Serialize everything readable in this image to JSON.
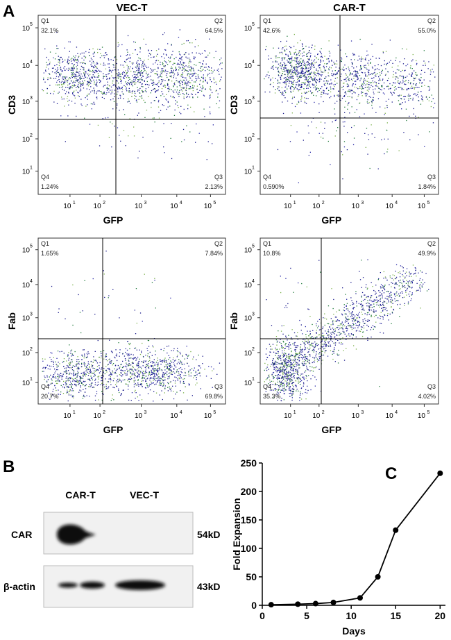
{
  "panel_a": {
    "label": "A",
    "tick_base": "10",
    "tick_exps": [
      "1",
      "2",
      "3",
      "4",
      "5"
    ],
    "plots": [
      {
        "title": "VEC-T",
        "y_label": "CD3",
        "x_label": "GFP",
        "quadrants": [
          {
            "name": "Q1",
            "value": "32.1%"
          },
          {
            "name": "Q2",
            "value": "64.5%"
          },
          {
            "name": "Q3",
            "value": "2.13%"
          },
          {
            "name": "Q4",
            "value": "1.24%"
          }
        ]
      },
      {
        "title": "CAR-T",
        "y_label": "CD3",
        "x_label": "GFP",
        "quadrants": [
          {
            "name": "Q1",
            "value": "42.6%"
          },
          {
            "name": "Q2",
            "value": "55.0%"
          },
          {
            "name": "Q3",
            "value": "1.84%"
          },
          {
            "name": "Q4",
            "value": "0.590%"
          }
        ]
      },
      {
        "y_label": "Fab",
        "x_label": "GFP",
        "quadrants": [
          {
            "name": "Q1",
            "value": "1.65%"
          },
          {
            "name": "Q2",
            "value": "7.84%"
          },
          {
            "name": "Q3",
            "value": "69.8%"
          },
          {
            "name": "Q4",
            "value": "20.7%"
          }
        ]
      },
      {
        "y_label": "Fab",
        "x_label": "GFP",
        "quadrants": [
          {
            "name": "Q1",
            "value": "10.8%"
          },
          {
            "name": "Q2",
            "value": "49.9%"
          },
          {
            "name": "Q3",
            "value": "4.02%"
          },
          {
            "name": "Q4",
            "value": "35.3%"
          }
        ]
      }
    ]
  },
  "panel_b": {
    "label": "B",
    "lanes": [
      "CAR-T",
      "VEC-T"
    ],
    "rows": [
      {
        "name": "CAR",
        "size": "54kD"
      },
      {
        "name": "β-actin",
        "size": "43kD"
      }
    ]
  },
  "chart_data": {
    "type": "line",
    "label": "C",
    "x_label": "Days",
    "y_label": "Fold Expansion",
    "x": [
      1,
      4,
      6,
      8,
      11,
      13,
      15,
      20
    ],
    "values": [
      1,
      2,
      3,
      5,
      13,
      50,
      132,
      232
    ],
    "color": "#000000",
    "xlim": [
      0,
      20.6
    ],
    "ylim": [
      0,
      250
    ],
    "xticks": [
      0,
      5,
      10,
      15,
      20
    ],
    "yticks": [
      0,
      50,
      100,
      150,
      200,
      250
    ]
  }
}
